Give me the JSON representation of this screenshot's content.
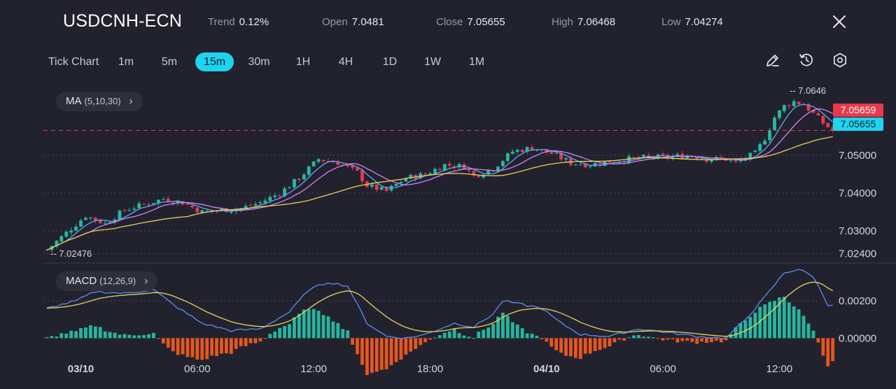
{
  "header": {
    "symbol": "USDCNH-ECN",
    "stats": [
      {
        "label": "Trend",
        "value": "0.12%"
      },
      {
        "label": "Open",
        "value": "7.0481"
      },
      {
        "label": "Close",
        "value": "7.05655"
      },
      {
        "label": "High",
        "value": "7.06468"
      },
      {
        "label": "Low",
        "value": "7.04274"
      }
    ]
  },
  "timeframes": [
    "Tick Chart",
    "1m",
    "5m",
    "15m",
    "30m",
    "1H",
    "4H",
    "1D",
    "1W",
    "1M"
  ],
  "active_timeframe": "15m",
  "indicators": {
    "ma": {
      "name": "MA",
      "params": "(5,10,30)"
    },
    "macd": {
      "name": "MACD",
      "params": "(12,26,9)"
    }
  },
  "colors": {
    "up": "#26b8a0",
    "down": "#e8394c",
    "ma5": "#5aa9ff",
    "ma10": "#d884f2",
    "ma30": "#e6d25a",
    "macd_line": "#5b8ff5",
    "signal_line": "#e8d65a",
    "hist_pos": "#27b59e",
    "hist_neg": "#e8561e",
    "accent": "#1fd4f0",
    "bid_tag": "#e8394c",
    "ask_tag": "#1fd4f0"
  },
  "chart_data": {
    "type": "candlestick",
    "price_axis_ticks": [
      "7.05000",
      "7.04000",
      "7.03000",
      "7.02400"
    ],
    "price_ylim": [
      7.023,
      7.067
    ],
    "current_bid": "7.05659",
    "current_ask": "7.05655",
    "high_marker": "-- 7.0646",
    "low_marker": "-- 7.02476",
    "macd_axis_ticks": [
      "0.00200",
      "0.00000"
    ],
    "macd_ylim": [
      -0.001,
      0.0038
    ],
    "time_labels": [
      {
        "text": "03/10",
        "bold": true,
        "index": 7
      },
      {
        "text": "06:00",
        "bold": false,
        "index": 31
      },
      {
        "text": "12:00",
        "bold": false,
        "index": 55
      },
      {
        "text": "18:00",
        "bold": false,
        "index": 79
      },
      {
        "text": "04/10",
        "bold": true,
        "index": 103
      },
      {
        "text": "06:00",
        "bold": false,
        "index": 127
      },
      {
        "text": "12:00",
        "bold": false,
        "index": 151
      }
    ],
    "price_path": [
      [
        0,
        7.025
      ],
      [
        4,
        7.0295
      ],
      [
        8,
        7.034
      ],
      [
        12,
        7.032
      ],
      [
        16,
        7.0355
      ],
      [
        20,
        7.037
      ],
      [
        24,
        7.0385
      ],
      [
        28,
        7.0375
      ],
      [
        32,
        7.035
      ],
      [
        36,
        7.0355
      ],
      [
        40,
        7.036
      ],
      [
        44,
        7.0375
      ],
      [
        48,
        7.04
      ],
      [
        52,
        7.044
      ],
      [
        56,
        7.049
      ],
      [
        60,
        7.048
      ],
      [
        64,
        7.0455
      ],
      [
        66,
        7.042
      ],
      [
        70,
        7.0405
      ],
      [
        74,
        7.044
      ],
      [
        78,
        7.045
      ],
      [
        82,
        7.0475
      ],
      [
        86,
        7.047
      ],
      [
        88,
        7.0445
      ],
      [
        92,
        7.0465
      ],
      [
        96,
        7.051
      ],
      [
        100,
        7.052
      ],
      [
        104,
        7.0505
      ],
      [
        108,
        7.048
      ],
      [
        112,
        7.0475
      ],
      [
        116,
        7.0485
      ],
      [
        120,
        7.049
      ],
      [
        124,
        7.0495
      ],
      [
        128,
        7.0495
      ],
      [
        132,
        7.05
      ],
      [
        136,
        7.049
      ],
      [
        140,
        7.049
      ],
      [
        142,
        7.048
      ],
      [
        146,
        7.0505
      ],
      [
        148,
        7.0545
      ],
      [
        150,
        7.06
      ],
      [
        152,
        7.063
      ],
      [
        154,
        7.0642
      ],
      [
        156,
        7.0635
      ],
      [
        158,
        7.061
      ],
      [
        160,
        7.0585
      ],
      [
        162,
        7.0566
      ]
    ],
    "macd_path": [
      [
        0,
        0.0016
      ],
      [
        6,
        0.002
      ],
      [
        10,
        0.0025
      ],
      [
        16,
        0.0024
      ],
      [
        22,
        0.0026
      ],
      [
        26,
        0.0018
      ],
      [
        32,
        0.0008
      ],
      [
        38,
        0.0004
      ],
      [
        44,
        0.0005
      ],
      [
        50,
        0.0014
      ],
      [
        54,
        0.0026
      ],
      [
        58,
        0.003
      ],
      [
        62,
        0.0028
      ],
      [
        66,
        0.0008
      ],
      [
        70,
        0.0001
      ],
      [
        74,
        0.0
      ],
      [
        78,
        0.0002
      ],
      [
        80,
        0.0004
      ],
      [
        84,
        0.0008
      ],
      [
        88,
        0.0006
      ],
      [
        92,
        0.0013
      ],
      [
        94,
        0.002
      ],
      [
        98,
        0.0018
      ],
      [
        102,
        0.0016
      ],
      [
        106,
        0.0008
      ],
      [
        110,
        0.0002
      ],
      [
        116,
        0.0001
      ],
      [
        122,
        0.0005
      ],
      [
        128,
        0.0003
      ],
      [
        134,
        0.0001
      ],
      [
        140,
        0.0
      ],
      [
        144,
        0.001
      ],
      [
        148,
        0.0022
      ],
      [
        152,
        0.0035
      ],
      [
        155,
        0.0037
      ],
      [
        158,
        0.0033
      ],
      [
        161,
        0.0018
      ]
    ]
  }
}
